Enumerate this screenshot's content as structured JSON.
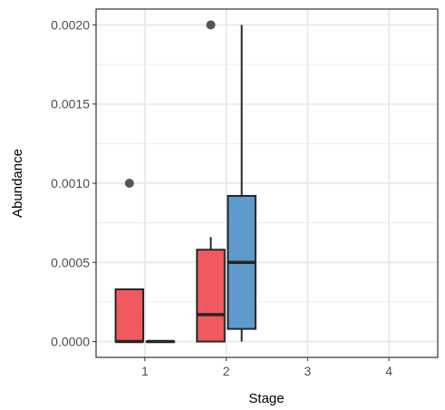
{
  "chart_data": {
    "type": "boxplot",
    "title": "",
    "xlabel": "Stage",
    "ylabel": "Abundance",
    "x_ticks": [
      "1",
      "2",
      "3",
      "4"
    ],
    "y_ticks": [
      "0.0000",
      "0.0005",
      "0.0010",
      "0.0015",
      "0.0020"
    ],
    "y_tick_values": [
      0,
      0.0005,
      0.001,
      0.0015,
      0.002
    ],
    "xlim": [
      0.4,
      4.6
    ],
    "ylim": [
      -0.0001,
      0.0021
    ],
    "grid": true,
    "legend": "none",
    "colors": {
      "red": "#F05A5F",
      "blue": "#5E9ACC",
      "outline": "#262626",
      "outlier": "#555555",
      "grid": "#ebebeb"
    },
    "boxes": [
      {
        "stage": 1,
        "offset": -0.19,
        "color": "red",
        "min": 0,
        "q1": 0,
        "median": 0,
        "q3": 0.00033,
        "max": 0.00033,
        "outliers": [
          0.001
        ]
      },
      {
        "stage": 1,
        "offset": 0.19,
        "color": "red",
        "min": 0,
        "q1": 0,
        "median": 0,
        "q3": 0,
        "max": 0,
        "outliers": []
      },
      {
        "stage": 2,
        "offset": -0.19,
        "color": "red",
        "min": 0,
        "q1": 0,
        "median": 0.00017,
        "q3": 0.00058,
        "max": 0.00066,
        "outliers": [
          0.002
        ]
      },
      {
        "stage": 2,
        "offset": 0.19,
        "color": "blue",
        "min": 0,
        "q1": 8e-05,
        "median": 0.0005,
        "q3": 0.00092,
        "max": 0.002,
        "outliers": []
      }
    ]
  }
}
